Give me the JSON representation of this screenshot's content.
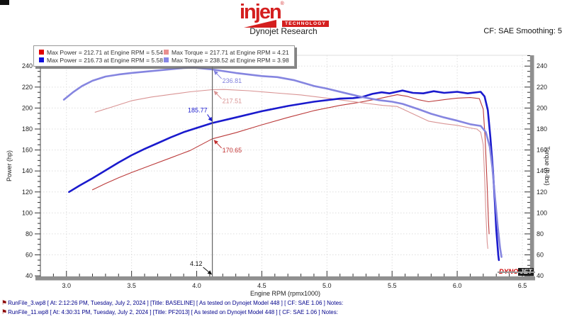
{
  "header": {
    "logo": {
      "brand": "injen",
      "registered": "®",
      "sub": "TECHNOLOGY",
      "color": "#d41f1f"
    },
    "title": "Dynojet Research",
    "smoothing": "CF: SAE Smoothing: 5"
  },
  "legend": {
    "items": [
      {
        "swatch": "#e10000",
        "label": "Max Power = 212.71 at Engine RPM = 5.54"
      },
      {
        "swatch": "#e98f8f",
        "label": "Max Torque = 217.71 at Engine RPM = 4.21"
      },
      {
        "swatch": "#1010dd",
        "label": "Max Power = 216.73 at Engine RPM = 5.58"
      },
      {
        "swatch": "#8787e6",
        "label": "Max Torque = 238.52 at Engine RPM = 3.98"
      }
    ]
  },
  "chart_data": {
    "type": "line",
    "title": "",
    "xlabel": "Engine RPM (rpmx1000)",
    "ylabel_left": "Power (hp)",
    "ylabel_right": "Torque (ft-lbs)",
    "x_axis": {
      "tick_min": 3.0,
      "tick_max": 6.5,
      "major": 0.5,
      "minor": 0.1,
      "xlim": [
        2.8,
        6.56
      ]
    },
    "y_axis": {
      "tick_min": 40,
      "tick_max": 240,
      "major": 20,
      "minor": 5,
      "ylim": [
        39.4,
        250.3
      ],
      "dual": true
    },
    "grid": true,
    "legend_position": "top-left",
    "series": [
      {
        "id": "baseline-power",
        "run": "BASELINE",
        "quantity": "Power (hp)",
        "max_label": "Max Power = 212.71 at Engine RPM = 5.54",
        "color": "#bb3a3a",
        "width": 1.1,
        "points": [
          [
            3.2,
            122
          ],
          [
            3.3,
            128
          ],
          [
            3.4,
            133.5
          ],
          [
            3.5,
            138.5
          ],
          [
            3.65,
            145.5
          ],
          [
            3.8,
            152.5
          ],
          [
            3.95,
            159.5
          ],
          [
            4.12,
            170.65
          ],
          [
            4.3,
            176.5
          ],
          [
            4.5,
            184
          ],
          [
            4.7,
            191
          ],
          [
            4.9,
            197.5
          ],
          [
            5.1,
            202.5
          ],
          [
            5.25,
            205.5
          ],
          [
            5.4,
            209
          ],
          [
            5.54,
            212.71
          ],
          [
            5.62,
            211
          ],
          [
            5.7,
            208
          ],
          [
            5.78,
            206
          ],
          [
            5.9,
            208
          ],
          [
            6.0,
            209.5
          ],
          [
            6.1,
            210
          ],
          [
            6.17,
            209
          ],
          [
            6.2,
            199
          ],
          [
            6.215,
            170
          ],
          [
            6.23,
            125
          ],
          [
            6.24,
            92
          ],
          [
            6.245,
            80
          ]
        ]
      },
      {
        "id": "baseline-torque",
        "run": "BASELINE",
        "quantity": "Torque (ft-lbs)",
        "max_label": "Max Torque = 217.71 at Engine RPM = 4.21",
        "color": "#d99494",
        "width": 1.1,
        "points": [
          [
            3.22,
            196
          ],
          [
            3.35,
            201
          ],
          [
            3.5,
            207
          ],
          [
            3.65,
            210.5
          ],
          [
            3.8,
            213
          ],
          [
            3.95,
            215.5
          ],
          [
            4.12,
            217.51
          ],
          [
            4.21,
            217.71
          ],
          [
            4.4,
            216.5
          ],
          [
            4.6,
            214.5
          ],
          [
            4.8,
            212.5
          ],
          [
            5.0,
            209.5
          ],
          [
            5.15,
            207
          ],
          [
            5.27,
            205
          ],
          [
            5.43,
            202.5
          ],
          [
            5.54,
            201.5
          ],
          [
            5.65,
            195
          ],
          [
            5.78,
            187.5
          ],
          [
            5.9,
            185
          ],
          [
            6.0,
            183.5
          ],
          [
            6.1,
            181
          ],
          [
            6.15,
            180
          ],
          [
            6.18,
            177
          ],
          [
            6.2,
            165
          ],
          [
            6.21,
            135
          ],
          [
            6.22,
            100
          ],
          [
            6.23,
            72
          ],
          [
            6.235,
            66
          ]
        ]
      },
      {
        "id": "pf2013-power",
        "run": "PF2013",
        "quantity": "Power (hp)",
        "max_label": "Max Power = 216.73 at Engine RPM = 5.58",
        "color": "#1a1acd",
        "width": 2.6,
        "points": [
          [
            3.02,
            120
          ],
          [
            3.1,
            126
          ],
          [
            3.2,
            133
          ],
          [
            3.3,
            140.5
          ],
          [
            3.4,
            148
          ],
          [
            3.5,
            155
          ],
          [
            3.6,
            161
          ],
          [
            3.7,
            166.5
          ],
          [
            3.8,
            172
          ],
          [
            3.9,
            177
          ],
          [
            4.0,
            181
          ],
          [
            4.12,
            185.77
          ],
          [
            4.3,
            191
          ],
          [
            4.5,
            197
          ],
          [
            4.7,
            202
          ],
          [
            4.9,
            206
          ],
          [
            5.1,
            209
          ],
          [
            5.2,
            209.5
          ],
          [
            5.27,
            210.5
          ],
          [
            5.35,
            213.5
          ],
          [
            5.42,
            215
          ],
          [
            5.48,
            214
          ],
          [
            5.58,
            216.73
          ],
          [
            5.66,
            214.5
          ],
          [
            5.74,
            214
          ],
          [
            5.82,
            216
          ],
          [
            5.9,
            214.5
          ],
          [
            6.0,
            215.5
          ],
          [
            6.08,
            214
          ],
          [
            6.18,
            215.5
          ],
          [
            6.21,
            211
          ],
          [
            6.235,
            198
          ],
          [
            6.255,
            172
          ],
          [
            6.275,
            140
          ],
          [
            6.29,
            108
          ],
          [
            6.3,
            84
          ],
          [
            6.315,
            60
          ],
          [
            6.32,
            55
          ]
        ]
      },
      {
        "id": "pf2013-torque",
        "run": "PF2013",
        "quantity": "Torque (ft-lbs)",
        "max_label": "Max Torque = 238.52 at Engine RPM = 3.98",
        "color": "#8585e0",
        "width": 2.6,
        "points": [
          [
            2.98,
            208
          ],
          [
            3.05,
            215
          ],
          [
            3.12,
            221
          ],
          [
            3.2,
            226
          ],
          [
            3.3,
            230
          ],
          [
            3.4,
            232
          ],
          [
            3.5,
            233.5
          ],
          [
            3.65,
            235.2
          ],
          [
            3.8,
            237
          ],
          [
            3.9,
            238.2
          ],
          [
            3.98,
            238.52
          ],
          [
            4.12,
            236.81
          ],
          [
            4.3,
            233.5
          ],
          [
            4.5,
            230.5
          ],
          [
            4.62,
            229.5
          ],
          [
            4.75,
            226.5
          ],
          [
            4.9,
            221
          ],
          [
            5.0,
            218.5
          ],
          [
            5.15,
            214
          ],
          [
            5.27,
            210.5
          ],
          [
            5.4,
            207.5
          ],
          [
            5.5,
            206
          ],
          [
            5.58,
            204
          ],
          [
            5.7,
            199
          ],
          [
            5.8,
            194.5
          ],
          [
            5.9,
            191
          ],
          [
            6.0,
            188
          ],
          [
            6.1,
            184.5
          ],
          [
            6.18,
            183
          ],
          [
            6.22,
            177
          ],
          [
            6.25,
            163
          ],
          [
            6.27,
            143
          ],
          [
            6.29,
            115
          ],
          [
            6.31,
            88
          ],
          [
            6.33,
            66
          ],
          [
            6.34,
            58
          ]
        ]
      }
    ],
    "cursor": {
      "rpm": 4.12,
      "rpm_label": "4.12",
      "markers": [
        {
          "label": "236.81",
          "value": 236.81,
          "color": "#8080dd",
          "side": "right"
        },
        {
          "label": "217.51",
          "value": 217.51,
          "color": "#d99494",
          "side": "right"
        },
        {
          "label": "185.77",
          "value": 185.77,
          "color": "#1a1acd",
          "side": "left"
        },
        {
          "label": "170.65",
          "value": 170.65,
          "color": "#c03030",
          "side": "right"
        }
      ]
    },
    "watermark": {
      "part1": "DYNO",
      "part2": "JET"
    }
  },
  "footer": {
    "runs": [
      {
        "file": "RunFile_3.wp8",
        "flag": "⚑",
        "details": "[ At: 2:12:26 PM, Tuesday, July 2, 2024 ] [Title: BASELINE]  [ As tested on Dynojet Model 448 ] [ CF: SAE 1.06 ] Notes:"
      },
      {
        "file": "RunFile_11.wp8",
        "flag": "⚑",
        "details": "[ At: 4:30:31 PM, Tuesday, July 2, 2024 ] [Title: PF2013]  [ As tested on Dynojet Model 448 ] [ CF: SAE 1.06 ] Notes:"
      }
    ]
  }
}
